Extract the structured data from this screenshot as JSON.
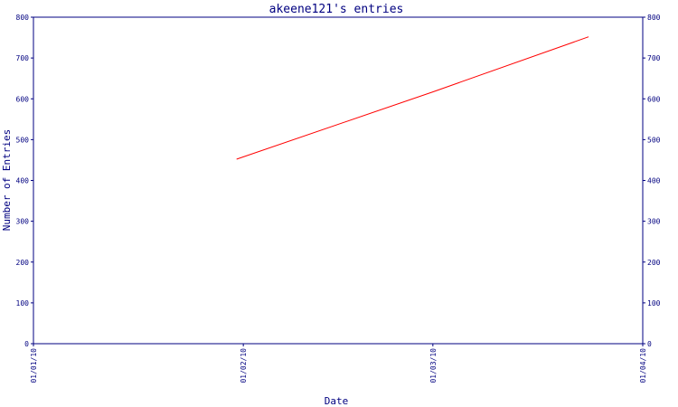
{
  "chart_data": {
    "type": "line",
    "title": "akeene121's entries",
    "xlabel": "Date",
    "ylabel": "Number of Entries",
    "x_ticks": [
      "01/01/10",
      "01/02/10",
      "01/03/10",
      "01/04/10"
    ],
    "y_ticks": [
      "0",
      "100",
      "200",
      "300",
      "400",
      "500",
      "600",
      "700",
      "800"
    ],
    "xlim": [
      "2010-01-01",
      "2010-04-01"
    ],
    "ylim": [
      0,
      800
    ],
    "series": [
      {
        "color": "#ff0000",
        "points": [
          {
            "x": "2010-01-31",
            "y": 452
          },
          {
            "x": "2010-03-01",
            "y": 617
          },
          {
            "x": "2010-03-24",
            "y": 752
          }
        ]
      }
    ],
    "grid": false,
    "y_axis_right_mirror": true
  }
}
